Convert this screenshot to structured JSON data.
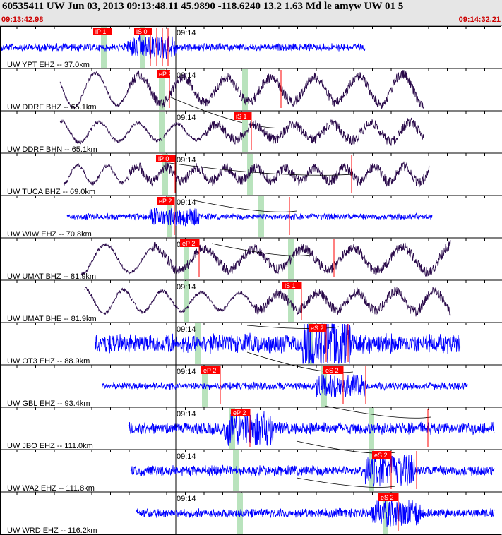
{
  "header": {
    "title": "60535411 UW Jun 03, 2013 09:13:48.11    45.9890 -118.6240 13.2 1.63 Md le amyw UW 01    5",
    "start_time": "09:13:42.98",
    "end_time": "09:14:32.21"
  },
  "minute_label": "09:14",
  "colors": {
    "header_bg": "#e6e6e6",
    "ehz_trace": "#0000ff",
    "broadband_trace": "#2a0a4a",
    "pick_box": "#ff0000",
    "pick_text": "#ffffff",
    "window_band": "#b9e3bd",
    "time_text": "#cc0000",
    "moveout_curve": "#000000"
  },
  "traces": [
    {
      "label": "UW YPT EHZ -- 37.0km",
      "type": "ehz",
      "picks": [
        "iP 1",
        "iS 0"
      ]
    },
    {
      "label": "UW DDRF BHZ -- 65.1km",
      "type": "bb",
      "picks": [
        "eP 2"
      ]
    },
    {
      "label": "UW DDRF BHN -- 65.1km",
      "type": "bb",
      "picks": [
        "iS 1"
      ]
    },
    {
      "label": "UW TUCA BHZ -- 69.0km",
      "type": "bb",
      "picks": [
        "iP 0"
      ]
    },
    {
      "label": "UW WIW EHZ -- 70.8km",
      "type": "ehz",
      "picks": [
        "eP 2"
      ]
    },
    {
      "label": "UW UMAT BHZ -- 81.9km",
      "type": "bb",
      "picks": [
        "eP 2"
      ]
    },
    {
      "label": "UW UMAT BHE -- 81.9km",
      "type": "bb",
      "picks": [
        "iS 1"
      ]
    },
    {
      "label": "UW OT3 EHZ -- 88.9km",
      "type": "ehz",
      "picks": [
        "eS 2"
      ]
    },
    {
      "label": "UW GBL EHZ -- 93.4km",
      "type": "ehz",
      "picks": [
        "eP 2",
        "eS 2"
      ]
    },
    {
      "label": "UW JBO EHZ -- 111.0km",
      "type": "ehz",
      "picks": [
        "eP 2"
      ]
    },
    {
      "label": "UW WA2 EHZ -- 111.8km",
      "type": "ehz",
      "picks": [
        "eS 2"
      ]
    },
    {
      "label": "UW WRD EHZ -- 116.2km",
      "type": "ehz",
      "picks": [
        "eS 2"
      ]
    }
  ]
}
